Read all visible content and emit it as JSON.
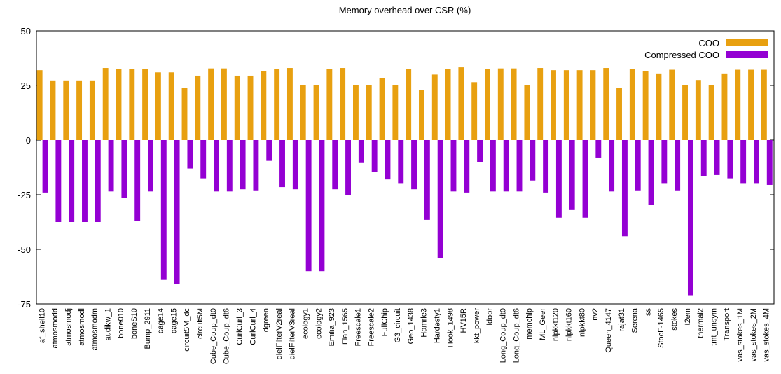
{
  "chart_data": {
    "type": "bar",
    "title": "Memory overhead over CSR (%)",
    "categories": [
      "af_shell10",
      "atmosmodd",
      "atmosmodj",
      "atmosmodl",
      "atmosmodm",
      "audikw_1",
      "bone010",
      "boneS10",
      "Bump_2911",
      "cage14",
      "cage15",
      "circuit5M_dc",
      "circuit5M",
      "Cube_Coup_dt0",
      "Cube_Coup_dt6",
      "CurlCurl_3",
      "CurlCurl_4",
      "dgreen",
      "dielFilterV2real",
      "dielFilterV3real",
      "ecology1",
      "ecology2",
      "Emilia_923",
      "Flan_1565",
      "Freescale1",
      "Freescale2",
      "FullChip",
      "G3_circuit",
      "Geo_1438",
      "Hamrle3",
      "Hardesty1",
      "Hook_1498",
      "HV15R",
      "kkt_power",
      "ldoor",
      "Long_Coup_dt0",
      "Long_Coup_dt6",
      "memchip",
      "ML_Geer",
      "nlpkkt120",
      "nlpkkt160",
      "nlpkkt80",
      "nv2",
      "Queen_4147",
      "rajat31",
      "Serena",
      "ss",
      "StocF-1465",
      "stokes",
      "t2em",
      "thermal2",
      "tmt_unsym",
      "Transport",
      "vas_stokes_1M",
      "vas_stokes_2M",
      "vas_stokes_4M"
    ],
    "series": [
      {
        "name": "COO",
        "color": "#e8a010",
        "values": [
          32,
          27.3,
          27.3,
          27.3,
          27.3,
          33,
          32.5,
          32.5,
          32.5,
          31,
          31,
          24,
          29.5,
          32.8,
          32.8,
          29.5,
          29.5,
          31.5,
          32.5,
          33,
          25,
          25,
          32.5,
          33,
          25,
          25,
          28.5,
          25,
          32.5,
          23,
          30,
          32.5,
          33.3,
          26.5,
          32.5,
          32.8,
          32.8,
          25,
          33,
          32,
          32,
          32,
          32,
          33,
          24,
          32.5,
          31.5,
          30.5,
          32.2,
          25,
          27.5,
          25,
          30.5,
          32.2,
          32.2,
          32.2
        ]
      },
      {
        "name": "Compressed COO",
        "color": "#9400d3",
        "values": [
          -24,
          -37.5,
          -37.5,
          -37.5,
          -37.5,
          -23.5,
          -26.5,
          -37,
          -23.5,
          -64,
          -66,
          -13,
          -17.5,
          -23.5,
          -23.5,
          -22.5,
          -23,
          -9.5,
          -21.5,
          -22.5,
          -60,
          -60,
          -22.5,
          -25,
          -10.5,
          -14.5,
          -18,
          -20,
          -22.5,
          -36.5,
          -54,
          -23.5,
          -24,
          -10,
          -23.5,
          -23.5,
          -23.5,
          -18.5,
          -24,
          -35.5,
          -32,
          -35.5,
          -8,
          -23.5,
          -44,
          -23,
          -29.5,
          -20,
          -23,
          -71,
          -16.5,
          -16,
          -17.5,
          -20,
          -20,
          -20.5
        ]
      }
    ],
    "ylim": [
      -75,
      50
    ],
    "yticks": [
      -75,
      -50,
      -25,
      0,
      25,
      50
    ],
    "grid": false,
    "legend": "upper right"
  }
}
